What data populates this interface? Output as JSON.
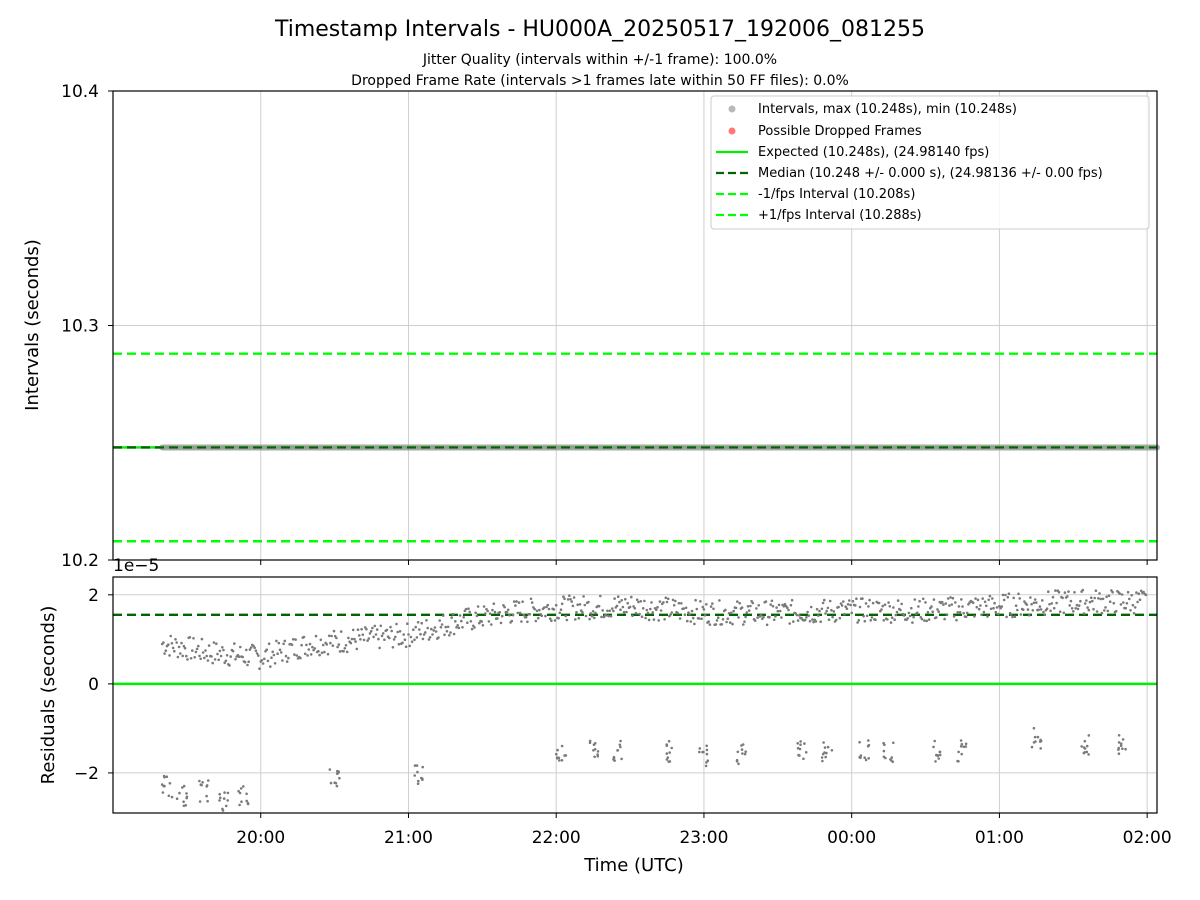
{
  "chart_data": [
    {
      "type": "scatter",
      "panel": "intervals",
      "title": "Timestamp Intervals - HU000A_20250517_192006_081255",
      "subtitle_1": "Jitter Quality (intervals within +/-1 frame): 100.0%",
      "subtitle_2": "Dropped Frame Rate (intervals >1 frames late within 50 FF files): 0.0%",
      "xlabel": "",
      "ylabel": "Intervals (seconds)",
      "ylim": [
        10.2,
        10.4
      ],
      "yticks": [
        "10.2",
        "10.3",
        "10.4"
      ],
      "grid": true,
      "legend_position": "top-right",
      "series": [
        {
          "name": "Intervals, max (10.248s), min (10.248s)",
          "style": "points",
          "color": "#9a9a9a",
          "x_range": [
            "19:20",
            "02:04"
          ],
          "y": 10.248
        },
        {
          "name": "Possible Dropped Frames",
          "style": "points",
          "color": "#ff5555",
          "count": 0
        },
        {
          "name": "Expected (10.248s), (24.98140 fps)",
          "style": "solid",
          "color": "#00ee00",
          "y": 10.248
        },
        {
          "name": "Median (10.248 +/- 0.000 s), (24.98136 +/- 0.00 fps)",
          "style": "dashed",
          "color": "#006400",
          "y": 10.248
        },
        {
          "name": "-1/fps Interval (10.208s)",
          "style": "dashed",
          "color": "#00ff00",
          "y": 10.208
        },
        {
          "name": "+1/fps Interval (10.288s)",
          "style": "dashed",
          "color": "#00ff00",
          "y": 10.288
        }
      ]
    },
    {
      "type": "scatter",
      "panel": "residuals",
      "xlabel": "Time (UTC)",
      "ylabel": "Residuals (seconds)",
      "y_multiplier": "1e−5",
      "ylim": [
        -2.9,
        2.4
      ],
      "yticks": [
        "−2",
        "0",
        "2"
      ],
      "xticks": [
        "20:00",
        "21:00",
        "22:00",
        "23:00",
        "00:00",
        "01:00",
        "02:00"
      ],
      "xlim": [
        "19:00",
        "02:04"
      ],
      "grid": true,
      "reference_lines": [
        {
          "name": "Expected",
          "y": 0,
          "color": "#00ee00",
          "style": "solid"
        },
        {
          "name": "Median",
          "y": 1.55,
          "color": "#006400",
          "style": "dashed"
        }
      ],
      "trend_points_x1e-5": [
        {
          "t": "19:20",
          "y": 0.9
        },
        {
          "t": "19:40",
          "y": 0.7
        },
        {
          "t": "20:00",
          "y": 0.6
        },
        {
          "t": "20:20",
          "y": 0.9
        },
        {
          "t": "20:40",
          "y": 1.0
        },
        {
          "t": "21:00",
          "y": 1.1
        },
        {
          "t": "21:20",
          "y": 1.4
        },
        {
          "t": "21:40",
          "y": 1.6
        },
        {
          "t": "22:00",
          "y": 1.7
        },
        {
          "t": "22:30",
          "y": 1.75
        },
        {
          "t": "23:00",
          "y": 1.6
        },
        {
          "t": "23:30",
          "y": 1.6
        },
        {
          "t": "00:00",
          "y": 1.65
        },
        {
          "t": "00:30",
          "y": 1.65
        },
        {
          "t": "01:00",
          "y": 1.75
        },
        {
          "t": "01:30",
          "y": 1.85
        },
        {
          "t": "02:00",
          "y": 1.85
        }
      ],
      "low_cluster_points_x1e-5": [
        {
          "t": "19:22",
          "y": -2.3
        },
        {
          "t": "19:28",
          "y": -2.5
        },
        {
          "t": "19:37",
          "y": -2.4
        },
        {
          "t": "19:45",
          "y": -2.6
        },
        {
          "t": "19:53",
          "y": -2.5
        },
        {
          "t": "20:30",
          "y": -2.1
        },
        {
          "t": "21:04",
          "y": -2.0
        },
        {
          "t": "22:02",
          "y": -1.5
        },
        {
          "t": "22:15",
          "y": -1.5
        },
        {
          "t": "22:25",
          "y": -1.5
        },
        {
          "t": "22:45",
          "y": -1.5
        },
        {
          "t": "23:00",
          "y": -1.6
        },
        {
          "t": "23:15",
          "y": -1.6
        },
        {
          "t": "23:40",
          "y": -1.5
        },
        {
          "t": "23:50",
          "y": -1.5
        },
        {
          "t": "00:05",
          "y": -1.5
        },
        {
          "t": "00:15",
          "y": -1.5
        },
        {
          "t": "00:35",
          "y": -1.5
        },
        {
          "t": "00:45",
          "y": -1.5
        },
        {
          "t": "01:15",
          "y": -1.2
        },
        {
          "t": "01:35",
          "y": -1.4
        },
        {
          "t": "01:50",
          "y": -1.4
        }
      ]
    }
  ]
}
